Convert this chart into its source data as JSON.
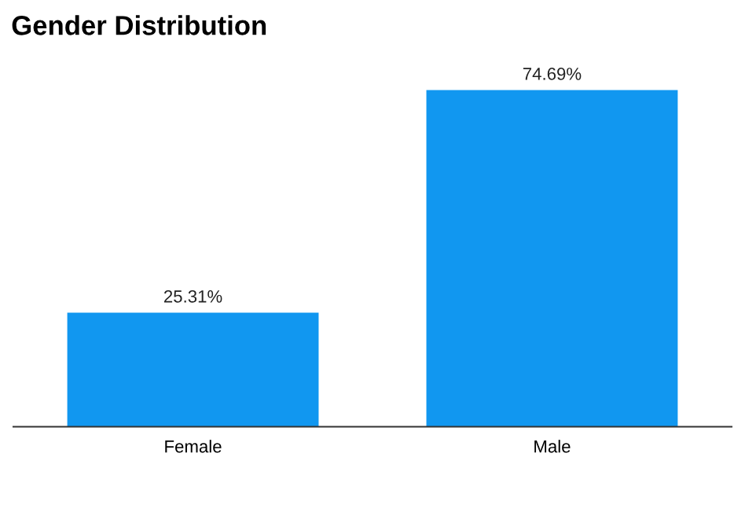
{
  "chart_data": {
    "type": "bar",
    "title": "Gender Distribution",
    "categories": [
      "Female",
      "Male"
    ],
    "values": [
      25.31,
      74.69
    ],
    "value_labels": [
      "25.31%",
      "74.69%"
    ],
    "color": "#1197f0",
    "grid": false,
    "tick_labels": "x"
  }
}
